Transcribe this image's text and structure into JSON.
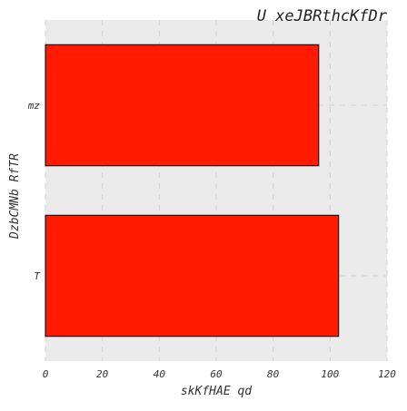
{
  "chart_data": {
    "type": "bar",
    "orientation": "horizontal",
    "title": "U xeJBRthcKfDr",
    "xlabel": "skKfHAE qd",
    "ylabel": "DzbCMNb RfTR",
    "categories": [
      "T",
      "mz"
    ],
    "values": [
      103,
      96
    ],
    "xlim": [
      0,
      120
    ],
    "xticks": [
      "0",
      "20",
      "40",
      "60",
      "80",
      "100",
      "120"
    ],
    "grid": true,
    "colors": {
      "bar": "#ff1a00",
      "bar_edge": "#000000",
      "plot_bg": "#ebebeb",
      "grid": "#d0d0d0"
    }
  }
}
